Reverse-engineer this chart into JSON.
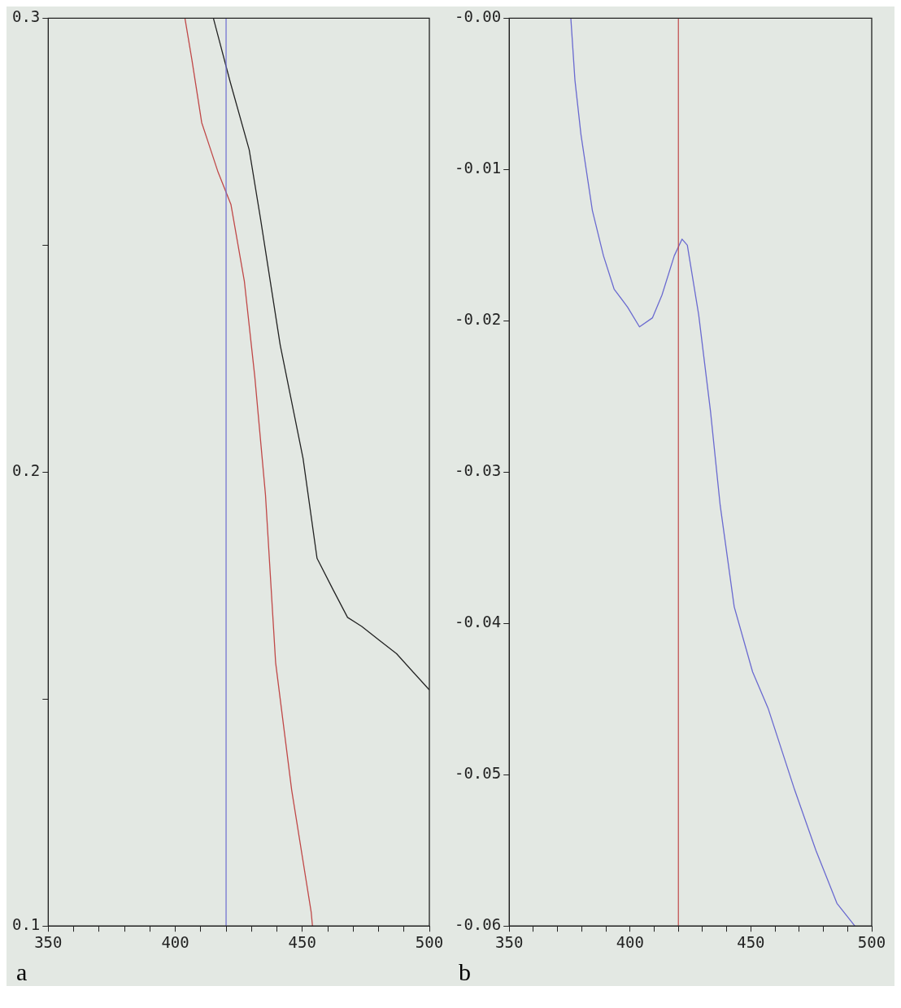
{
  "chart_data": [
    {
      "type": "line",
      "annotations": [
        "a"
      ],
      "xlim": [
        350,
        500
      ],
      "ylim": [
        0.1,
        0.3
      ],
      "xticks": [
        350,
        {
          "value": 360,
          "label": null
        },
        {
          "value": 370,
          "label": null
        },
        {
          "value": 380,
          "label": null
        },
        {
          "value": 390,
          "label": null
        },
        400,
        {
          "value": 410,
          "label": null
        },
        {
          "value": 420,
          "label": null
        },
        {
          "value": 430,
          "label": null
        },
        {
          "value": 440,
          "label": null
        },
        450,
        {
          "value": 460,
          "label": null
        },
        {
          "value": 470,
          "label": null
        },
        {
          "value": 480,
          "label": null
        },
        {
          "value": 490,
          "label": null
        },
        500
      ],
      "yticks": [
        {
          "value": 0.1,
          "label": "0.1"
        },
        {
          "value": 0.15,
          "label": null
        },
        {
          "value": 0.2,
          "label": "0.2"
        },
        {
          "value": 0.25,
          "label": null
        },
        {
          "value": 0.3,
          "label": "0.3"
        }
      ],
      "grid": false,
      "legend": false,
      "marker": "none",
      "line_style": "solid",
      "ref_lines": [
        {
          "axis": "x",
          "value": 420,
          "color": "#6a6ad0"
        }
      ],
      "series": [
        {
          "color": "#222222",
          "x": [
            415,
            421.6,
            429.1,
            433.5,
            441.3,
            450.3,
            455.8,
            462.2,
            467.8,
            473.4,
            480.2,
            487.1,
            500
          ],
          "values": [
            0.3,
            0.286,
            0.271,
            0.256,
            0.228,
            0.203,
            0.181,
            0.174,
            0.168,
            0.166,
            0.163,
            0.16,
            0.152
          ]
        },
        {
          "color": "#c04848",
          "x": [
            403.8,
            406.5,
            410.4,
            416.9,
            421.9,
            427.2,
            431.3,
            435.5,
            439.5,
            445.8,
            453.5,
            454
          ],
          "values": [
            0.3,
            0.291,
            0.277,
            0.266,
            0.259,
            0.242,
            0.221,
            0.195,
            0.158,
            0.13,
            0.103,
            0.1
          ]
        }
      ]
    },
    {
      "type": "line",
      "annotations": [
        "b"
      ],
      "xlim": [
        350,
        500
      ],
      "ylim": [
        -0.06,
        0
      ],
      "xticks": [
        350,
        {
          "value": 360,
          "label": null
        },
        {
          "value": 370,
          "label": null
        },
        {
          "value": 380,
          "label": null
        },
        {
          "value": 390,
          "label": null
        },
        400,
        {
          "value": 410,
          "label": null
        },
        {
          "value": 420,
          "label": null
        },
        {
          "value": 430,
          "label": null
        },
        {
          "value": 440,
          "label": null
        },
        450,
        {
          "value": 460,
          "label": null
        },
        {
          "value": 470,
          "label": null
        },
        {
          "value": 480,
          "label": null
        },
        {
          "value": 490,
          "label": null
        },
        500
      ],
      "yticks": [
        {
          "value": -0.06,
          "label": "-0.06"
        },
        {
          "value": -0.05,
          "label": "-0.05"
        },
        {
          "value": -0.04,
          "label": "-0.04"
        },
        {
          "value": -0.03,
          "label": "-0.03"
        },
        {
          "value": -0.02,
          "label": "-0.02"
        },
        {
          "value": -0.01,
          "label": "-0.01"
        },
        {
          "value": 0,
          "label": "-0.00"
        }
      ],
      "grid": false,
      "legend": false,
      "marker": "none",
      "line_style": "solid",
      "ref_lines": [
        {
          "axis": "x",
          "value": 420,
          "color": "#c04848"
        }
      ],
      "series": [
        {
          "color": "#6a6ad0",
          "x": [
            375.5,
            377.2,
            379.7,
            384.4,
            389,
            393.4,
            399,
            403.9,
            409.3,
            413.2,
            418.3,
            421.5,
            423.7,
            428.4,
            433.3,
            437.3,
            443.1,
            450.7,
            457.1,
            468.1,
            476.9,
            485.6,
            493
          ],
          "values": [
            0,
            -0.0041,
            -0.0077,
            -0.0127,
            -0.0157,
            -0.0179,
            -0.0191,
            -0.0204,
            -0.0198,
            -0.0183,
            -0.0157,
            -0.0146,
            -0.015,
            -0.0196,
            -0.026,
            -0.0322,
            -0.0389,
            -0.0432,
            -0.0456,
            -0.051,
            -0.055,
            -0.0585,
            -0.06
          ]
        }
      ]
    }
  ]
}
